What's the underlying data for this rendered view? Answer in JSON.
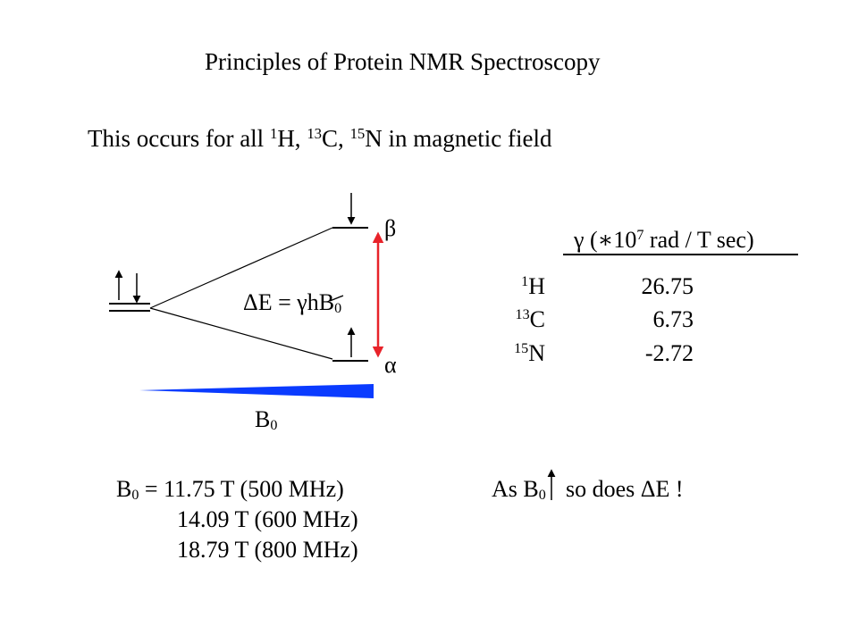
{
  "title": "Principles of Protein NMR Spectroscopy",
  "subtitle": {
    "prefix": "This occurs for all ",
    "h_mass": "1",
    "h_sym": "H, ",
    "c_mass": "13",
    "c_sym": "C, ",
    "n_mass": "15",
    "n_sym": "N",
    "suffix": " in magnetic field"
  },
  "diagram": {
    "beta_label": "β",
    "alpha_label": "α",
    "delta_e": "ΔE = ",
    "gamma": "γ",
    "hbar": "h",
    "b_sym": "B",
    "b_sub": "0",
    "field_label": "B",
    "field_sub": "0",
    "arrow_color": "#e8232a",
    "wedge_color": "#0a3bff"
  },
  "table": {
    "header_gamma": "γ",
    "header_open": " (",
    "header_star": "∗",
    "header_ten": "10",
    "header_exp": "7",
    "header_units": " rad / T sec)",
    "rows": [
      {
        "mass": "1",
        "sym": "H",
        "value": "26.75"
      },
      {
        "mass": "13",
        "sym": "C",
        "value": "6.73"
      },
      {
        "mass": "15",
        "sym": "N",
        "value": "-2.72"
      }
    ]
  },
  "fields": {
    "b": "B",
    "b_sub": "0",
    "eq": " = ",
    "lines": [
      "11.75 T (500 MHz)",
      "14.09 T (600 MHz)",
      "18.79 T (800 MHz)"
    ]
  },
  "conclusion": {
    "as": "As B",
    "b_sub": "0",
    "so": "so does ",
    "delta_e": "ΔE !"
  }
}
